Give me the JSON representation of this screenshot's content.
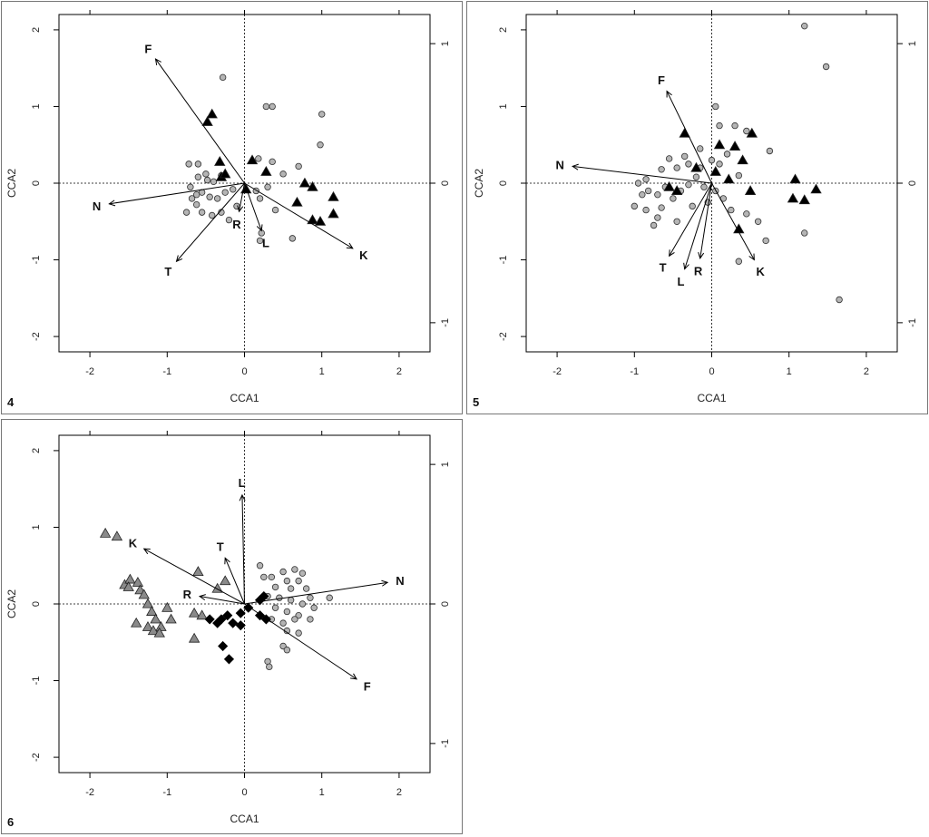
{
  "chart_data": [
    {
      "type": "scatter",
      "panel_label": "4",
      "xlabel": "CCA1",
      "ylabel": "CCA2",
      "xlim": [
        -2.4,
        2.4
      ],
      "ylim": [
        -2.2,
        2.2
      ],
      "x_ticks": [
        "-2",
        "-1",
        "0",
        "1",
        "2"
      ],
      "y_ticks": [
        "-2",
        "-1",
        "0",
        "1",
        "2"
      ],
      "right_ticks": [
        "-1",
        "0",
        "1"
      ],
      "top_ticks": 5,
      "vectors": [
        {
          "label": "F",
          "x": -1.15,
          "y": 1.62
        },
        {
          "label": "N",
          "x": -1.75,
          "y": -0.27
        },
        {
          "label": "T",
          "x": -0.88,
          "y": -1.02
        },
        {
          "label": "R",
          "x": -0.07,
          "y": -0.37
        },
        {
          "label": "L",
          "x": 0.22,
          "y": -0.62
        },
        {
          "label": "K",
          "x": 1.4,
          "y": -0.85
        }
      ],
      "series": [
        {
          "marker": "circle",
          "fill": "#b5b5b5",
          "points": [
            [
              -0.28,
              1.38
            ],
            [
              0.28,
              1.0
            ],
            [
              0.36,
              1.0
            ],
            [
              1.0,
              0.9
            ],
            [
              0.98,
              0.5
            ],
            [
              0.18,
              0.32
            ],
            [
              0.36,
              0.28
            ],
            [
              0.5,
              0.12
            ],
            [
              0.7,
              0.22
            ],
            [
              -0.72,
              0.25
            ],
            [
              -0.6,
              0.25
            ],
            [
              -0.5,
              0.12
            ],
            [
              -0.4,
              0.02
            ],
            [
              -0.6,
              0.08
            ],
            [
              -0.7,
              -0.05
            ],
            [
              -0.55,
              -0.12
            ],
            [
              -0.45,
              -0.18
            ],
            [
              -0.35,
              -0.2
            ],
            [
              -0.25,
              -0.12
            ],
            [
              -0.15,
              -0.08
            ],
            [
              -0.62,
              -0.28
            ],
            [
              -0.55,
              -0.38
            ],
            [
              -0.42,
              -0.42
            ],
            [
              -0.3,
              -0.38
            ],
            [
              -0.2,
              -0.48
            ],
            [
              -0.1,
              -0.3
            ],
            [
              0.2,
              -0.2
            ],
            [
              0.15,
              -0.1
            ],
            [
              0.3,
              -0.05
            ],
            [
              0.4,
              -0.35
            ],
            [
              0.22,
              -0.65
            ],
            [
              0.2,
              -0.75
            ],
            [
              0.62,
              -0.72
            ],
            [
              -0.75,
              -0.38
            ],
            [
              -0.68,
              -0.2
            ],
            [
              -0.48,
              0.04
            ],
            [
              -0.3,
              0.1
            ],
            [
              -0.62,
              -0.15
            ]
          ]
        },
        {
          "marker": "triangle",
          "fill": "#000000",
          "points": [
            [
              -0.48,
              0.8
            ],
            [
              -0.42,
              0.9
            ],
            [
              -0.32,
              0.28
            ],
            [
              -0.3,
              0.08
            ],
            [
              -0.25,
              0.12
            ],
            [
              0.1,
              0.3
            ],
            [
              0.28,
              0.15
            ],
            [
              0.78,
              0.0
            ],
            [
              0.88,
              -0.05
            ],
            [
              0.68,
              -0.25
            ],
            [
              1.15,
              -0.18
            ],
            [
              0.88,
              -0.48
            ],
            [
              0.98,
              -0.5
            ],
            [
              1.15,
              -0.4
            ],
            [
              0.02,
              -0.08
            ]
          ]
        }
      ]
    },
    {
      "type": "scatter",
      "panel_label": "5",
      "xlabel": "CCA1",
      "ylabel": "CCA2",
      "xlim": [
        -2.4,
        2.4
      ],
      "ylim": [
        -2.2,
        2.2
      ],
      "x_ticks": [
        "-2",
        "-1",
        "0",
        "1",
        "2"
      ],
      "y_ticks": [
        "-2",
        "-1",
        "0",
        "1",
        "2"
      ],
      "right_ticks": [
        "-1",
        "0",
        "1"
      ],
      "top_ticks": 5,
      "vectors": [
        {
          "label": "F",
          "x": -0.58,
          "y": 1.2
        },
        {
          "label": "N",
          "x": -1.8,
          "y": 0.22
        },
        {
          "label": "T",
          "x": -0.55,
          "y": -0.95
        },
        {
          "label": "L",
          "x": -0.35,
          "y": -1.12
        },
        {
          "label": "R",
          "x": -0.15,
          "y": -0.98
        },
        {
          "label": "K",
          "x": 0.55,
          "y": -1.0
        }
      ],
      "series": [
        {
          "marker": "circle",
          "fill": "#b5b5b5",
          "points": [
            [
              1.2,
              2.05
            ],
            [
              1.48,
              1.52
            ],
            [
              0.05,
              1.0
            ],
            [
              0.1,
              0.75
            ],
            [
              0.3,
              0.75
            ],
            [
              0.45,
              0.68
            ],
            [
              0.75,
              0.42
            ],
            [
              -0.15,
              0.45
            ],
            [
              -0.3,
              0.25
            ],
            [
              -0.45,
              0.2
            ],
            [
              -0.65,
              0.18
            ],
            [
              -0.85,
              0.05
            ],
            [
              -0.95,
              0.0
            ],
            [
              -0.82,
              -0.1
            ],
            [
              -0.7,
              -0.15
            ],
            [
              -0.6,
              -0.05
            ],
            [
              -0.5,
              -0.2
            ],
            [
              -0.4,
              -0.1
            ],
            [
              -0.3,
              -0.02
            ],
            [
              -0.2,
              0.08
            ],
            [
              -0.1,
              -0.05
            ],
            [
              0.05,
              -0.1
            ],
            [
              0.15,
              -0.2
            ],
            [
              0.25,
              -0.35
            ],
            [
              0.45,
              -0.4
            ],
            [
              0.6,
              -0.5
            ],
            [
              0.7,
              -0.75
            ],
            [
              0.35,
              -1.02
            ],
            [
              1.2,
              -0.65
            ],
            [
              1.65,
              -1.52
            ],
            [
              -0.65,
              -0.32
            ],
            [
              -0.85,
              -0.35
            ],
            [
              -1.0,
              -0.3
            ],
            [
              -0.75,
              -0.55
            ],
            [
              -0.45,
              -0.5
            ],
            [
              -0.25,
              -0.3
            ],
            [
              -0.05,
              -0.25
            ],
            [
              0.1,
              0.25
            ],
            [
              0.2,
              0.38
            ],
            [
              0.35,
              0.1
            ],
            [
              -0.55,
              0.32
            ],
            [
              -0.35,
              0.35
            ],
            [
              -0.15,
              0.2
            ],
            [
              0.0,
              0.3
            ],
            [
              -0.9,
              -0.15
            ],
            [
              -0.7,
              -0.45
            ]
          ]
        },
        {
          "marker": "triangle",
          "fill": "#000000",
          "points": [
            [
              -0.35,
              0.65
            ],
            [
              0.1,
              0.5
            ],
            [
              0.3,
              0.48
            ],
            [
              0.52,
              0.65
            ],
            [
              0.4,
              0.3
            ],
            [
              -0.2,
              0.2
            ],
            [
              0.05,
              0.15
            ],
            [
              0.22,
              0.05
            ],
            [
              0.5,
              -0.1
            ],
            [
              1.08,
              0.05
            ],
            [
              1.35,
              -0.08
            ],
            [
              1.05,
              -0.2
            ],
            [
              1.2,
              -0.22
            ],
            [
              0.35,
              -0.6
            ],
            [
              -0.55,
              -0.05
            ],
            [
              -0.45,
              -0.1
            ]
          ]
        }
      ]
    },
    {
      "type": "scatter",
      "panel_label": "6",
      "xlabel": "CCA1",
      "ylabel": "CCA2",
      "xlim": [
        -2.4,
        2.4
      ],
      "ylim": [
        -2.2,
        2.2
      ],
      "x_ticks": [
        "-2",
        "-1",
        "0",
        "1",
        "2"
      ],
      "y_ticks": [
        "-2",
        "-1",
        "0",
        "1",
        "2"
      ],
      "right_ticks": [
        "-1",
        "0",
        "1"
      ],
      "top_ticks": 5,
      "vectors": [
        {
          "label": "L",
          "x": -0.03,
          "y": 1.42
        },
        {
          "label": "K",
          "x": -1.3,
          "y": 0.72
        },
        {
          "label": "T",
          "x": -0.25,
          "y": 0.6
        },
        {
          "label": "R",
          "x": -0.58,
          "y": 0.1
        },
        {
          "label": "N",
          "x": 1.85,
          "y": 0.28
        },
        {
          "label": "F",
          "x": 1.45,
          "y": -0.98
        }
      ],
      "series": [
        {
          "marker": "circle",
          "fill": "#b5b5b5",
          "points": [
            [
              0.2,
              0.5
            ],
            [
              0.35,
              0.35
            ],
            [
              0.5,
              0.42
            ],
            [
              0.65,
              0.45
            ],
            [
              0.75,
              0.4
            ],
            [
              0.55,
              0.3
            ],
            [
              0.7,
              0.3
            ],
            [
              0.4,
              0.22
            ],
            [
              0.6,
              0.2
            ],
            [
              0.8,
              0.2
            ],
            [
              1.1,
              0.08
            ],
            [
              0.3,
              0.1
            ],
            [
              0.45,
              0.08
            ],
            [
              0.6,
              0.05
            ],
            [
              0.75,
              0.0
            ],
            [
              0.4,
              -0.05
            ],
            [
              0.55,
              -0.1
            ],
            [
              0.7,
              -0.15
            ],
            [
              0.35,
              -0.2
            ],
            [
              0.5,
              -0.25
            ],
            [
              0.65,
              -0.2
            ],
            [
              0.85,
              -0.2
            ],
            [
              0.55,
              -0.35
            ],
            [
              0.7,
              -0.38
            ],
            [
              0.5,
              -0.55
            ],
            [
              0.55,
              -0.6
            ],
            [
              0.3,
              -0.75
            ],
            [
              0.32,
              -0.82
            ],
            [
              0.25,
              0.35
            ],
            [
              0.85,
              0.08
            ],
            [
              0.9,
              -0.05
            ]
          ]
        },
        {
          "marker": "triangle",
          "fill": "#8a8a8a",
          "points": [
            [
              -1.8,
              0.92
            ],
            [
              -1.65,
              0.88
            ],
            [
              -1.55,
              0.25
            ],
            [
              -1.48,
              0.32
            ],
            [
              -1.38,
              0.28
            ],
            [
              -1.5,
              0.22
            ],
            [
              -1.35,
              0.18
            ],
            [
              -1.3,
              0.12
            ],
            [
              -1.25,
              0.0
            ],
            [
              -1.2,
              -0.1
            ],
            [
              -1.15,
              -0.2
            ],
            [
              -1.25,
              -0.3
            ],
            [
              -1.18,
              -0.35
            ],
            [
              -1.08,
              -0.3
            ],
            [
              -1.0,
              -0.05
            ],
            [
              -0.95,
              -0.2
            ],
            [
              -0.65,
              -0.12
            ],
            [
              -0.55,
              -0.15
            ],
            [
              -0.6,
              0.42
            ],
            [
              -0.25,
              0.3
            ],
            [
              -0.35,
              0.2
            ],
            [
              -0.65,
              -0.45
            ],
            [
              -1.4,
              -0.25
            ],
            [
              -1.1,
              -0.38
            ]
          ]
        },
        {
          "marker": "diamond",
          "fill": "#000000",
          "points": [
            [
              -0.45,
              -0.2
            ],
            [
              -0.35,
              -0.25
            ],
            [
              -0.22,
              -0.15
            ],
            [
              -0.15,
              -0.25
            ],
            [
              -0.05,
              -0.12
            ],
            [
              0.05,
              -0.05
            ],
            [
              0.2,
              0.05
            ],
            [
              0.25,
              0.1
            ],
            [
              0.2,
              -0.15
            ],
            [
              0.28,
              -0.2
            ],
            [
              -0.28,
              -0.55
            ],
            [
              -0.2,
              -0.72
            ],
            [
              -0.05,
              -0.28
            ],
            [
              -0.3,
              -0.2
            ]
          ]
        }
      ]
    }
  ]
}
